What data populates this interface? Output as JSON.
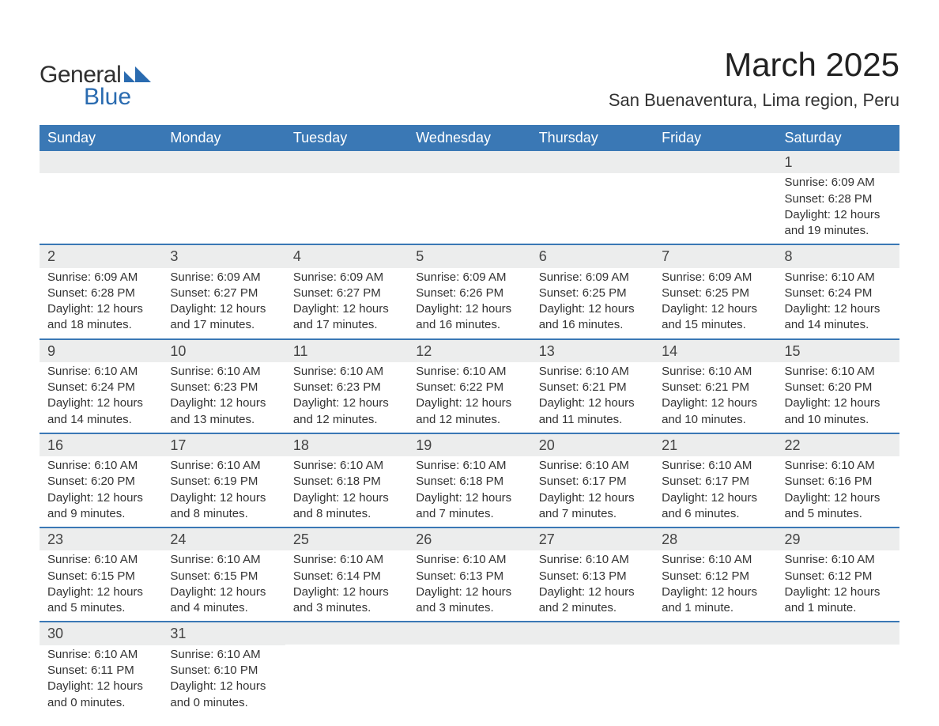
{
  "logo": {
    "text_general": "General",
    "text_blue": "Blue",
    "shape_color": "#2a6bb0",
    "text_general_color": "#2f2f2f"
  },
  "title": {
    "month": "March 2025",
    "location": "San Buenaventura, Lima region, Peru"
  },
  "colors": {
    "header_bg": "#3a78b5",
    "header_text": "#ffffff",
    "row_divider": "#3a78b5",
    "daynum_bg": "#eceded",
    "body_text": "#333333",
    "background": "#ffffff"
  },
  "weekdays": [
    "Sunday",
    "Monday",
    "Tuesday",
    "Wednesday",
    "Thursday",
    "Friday",
    "Saturday"
  ],
  "weeks": [
    [
      null,
      null,
      null,
      null,
      null,
      null,
      {
        "n": "1",
        "sunrise": "Sunrise: 6:09 AM",
        "sunset": "Sunset: 6:28 PM",
        "day1": "Daylight: 12 hours",
        "day2": "and 19 minutes."
      }
    ],
    [
      {
        "n": "2",
        "sunrise": "Sunrise: 6:09 AM",
        "sunset": "Sunset: 6:28 PM",
        "day1": "Daylight: 12 hours",
        "day2": "and 18 minutes."
      },
      {
        "n": "3",
        "sunrise": "Sunrise: 6:09 AM",
        "sunset": "Sunset: 6:27 PM",
        "day1": "Daylight: 12 hours",
        "day2": "and 17 minutes."
      },
      {
        "n": "4",
        "sunrise": "Sunrise: 6:09 AM",
        "sunset": "Sunset: 6:27 PM",
        "day1": "Daylight: 12 hours",
        "day2": "and 17 minutes."
      },
      {
        "n": "5",
        "sunrise": "Sunrise: 6:09 AM",
        "sunset": "Sunset: 6:26 PM",
        "day1": "Daylight: 12 hours",
        "day2": "and 16 minutes."
      },
      {
        "n": "6",
        "sunrise": "Sunrise: 6:09 AM",
        "sunset": "Sunset: 6:25 PM",
        "day1": "Daylight: 12 hours",
        "day2": "and 16 minutes."
      },
      {
        "n": "7",
        "sunrise": "Sunrise: 6:09 AM",
        "sunset": "Sunset: 6:25 PM",
        "day1": "Daylight: 12 hours",
        "day2": "and 15 minutes."
      },
      {
        "n": "8",
        "sunrise": "Sunrise: 6:10 AM",
        "sunset": "Sunset: 6:24 PM",
        "day1": "Daylight: 12 hours",
        "day2": "and 14 minutes."
      }
    ],
    [
      {
        "n": "9",
        "sunrise": "Sunrise: 6:10 AM",
        "sunset": "Sunset: 6:24 PM",
        "day1": "Daylight: 12 hours",
        "day2": "and 14 minutes."
      },
      {
        "n": "10",
        "sunrise": "Sunrise: 6:10 AM",
        "sunset": "Sunset: 6:23 PM",
        "day1": "Daylight: 12 hours",
        "day2": "and 13 minutes."
      },
      {
        "n": "11",
        "sunrise": "Sunrise: 6:10 AM",
        "sunset": "Sunset: 6:23 PM",
        "day1": "Daylight: 12 hours",
        "day2": "and 12 minutes."
      },
      {
        "n": "12",
        "sunrise": "Sunrise: 6:10 AM",
        "sunset": "Sunset: 6:22 PM",
        "day1": "Daylight: 12 hours",
        "day2": "and 12 minutes."
      },
      {
        "n": "13",
        "sunrise": "Sunrise: 6:10 AM",
        "sunset": "Sunset: 6:21 PM",
        "day1": "Daylight: 12 hours",
        "day2": "and 11 minutes."
      },
      {
        "n": "14",
        "sunrise": "Sunrise: 6:10 AM",
        "sunset": "Sunset: 6:21 PM",
        "day1": "Daylight: 12 hours",
        "day2": "and 10 minutes."
      },
      {
        "n": "15",
        "sunrise": "Sunrise: 6:10 AM",
        "sunset": "Sunset: 6:20 PM",
        "day1": "Daylight: 12 hours",
        "day2": "and 10 minutes."
      }
    ],
    [
      {
        "n": "16",
        "sunrise": "Sunrise: 6:10 AM",
        "sunset": "Sunset: 6:20 PM",
        "day1": "Daylight: 12 hours",
        "day2": "and 9 minutes."
      },
      {
        "n": "17",
        "sunrise": "Sunrise: 6:10 AM",
        "sunset": "Sunset: 6:19 PM",
        "day1": "Daylight: 12 hours",
        "day2": "and 8 minutes."
      },
      {
        "n": "18",
        "sunrise": "Sunrise: 6:10 AM",
        "sunset": "Sunset: 6:18 PM",
        "day1": "Daylight: 12 hours",
        "day2": "and 8 minutes."
      },
      {
        "n": "19",
        "sunrise": "Sunrise: 6:10 AM",
        "sunset": "Sunset: 6:18 PM",
        "day1": "Daylight: 12 hours",
        "day2": "and 7 minutes."
      },
      {
        "n": "20",
        "sunrise": "Sunrise: 6:10 AM",
        "sunset": "Sunset: 6:17 PM",
        "day1": "Daylight: 12 hours",
        "day2": "and 7 minutes."
      },
      {
        "n": "21",
        "sunrise": "Sunrise: 6:10 AM",
        "sunset": "Sunset: 6:17 PM",
        "day1": "Daylight: 12 hours",
        "day2": "and 6 minutes."
      },
      {
        "n": "22",
        "sunrise": "Sunrise: 6:10 AM",
        "sunset": "Sunset: 6:16 PM",
        "day1": "Daylight: 12 hours",
        "day2": "and 5 minutes."
      }
    ],
    [
      {
        "n": "23",
        "sunrise": "Sunrise: 6:10 AM",
        "sunset": "Sunset: 6:15 PM",
        "day1": "Daylight: 12 hours",
        "day2": "and 5 minutes."
      },
      {
        "n": "24",
        "sunrise": "Sunrise: 6:10 AM",
        "sunset": "Sunset: 6:15 PM",
        "day1": "Daylight: 12 hours",
        "day2": "and 4 minutes."
      },
      {
        "n": "25",
        "sunrise": "Sunrise: 6:10 AM",
        "sunset": "Sunset: 6:14 PM",
        "day1": "Daylight: 12 hours",
        "day2": "and 3 minutes."
      },
      {
        "n": "26",
        "sunrise": "Sunrise: 6:10 AM",
        "sunset": "Sunset: 6:13 PM",
        "day1": "Daylight: 12 hours",
        "day2": "and 3 minutes."
      },
      {
        "n": "27",
        "sunrise": "Sunrise: 6:10 AM",
        "sunset": "Sunset: 6:13 PM",
        "day1": "Daylight: 12 hours",
        "day2": "and 2 minutes."
      },
      {
        "n": "28",
        "sunrise": "Sunrise: 6:10 AM",
        "sunset": "Sunset: 6:12 PM",
        "day1": "Daylight: 12 hours",
        "day2": "and 1 minute."
      },
      {
        "n": "29",
        "sunrise": "Sunrise: 6:10 AM",
        "sunset": "Sunset: 6:12 PM",
        "day1": "Daylight: 12 hours",
        "day2": "and 1 minute."
      }
    ],
    [
      {
        "n": "30",
        "sunrise": "Sunrise: 6:10 AM",
        "sunset": "Sunset: 6:11 PM",
        "day1": "Daylight: 12 hours",
        "day2": "and 0 minutes."
      },
      {
        "n": "31",
        "sunrise": "Sunrise: 6:10 AM",
        "sunset": "Sunset: 6:10 PM",
        "day1": "Daylight: 12 hours",
        "day2": "and 0 minutes."
      },
      null,
      null,
      null,
      null,
      null
    ]
  ]
}
